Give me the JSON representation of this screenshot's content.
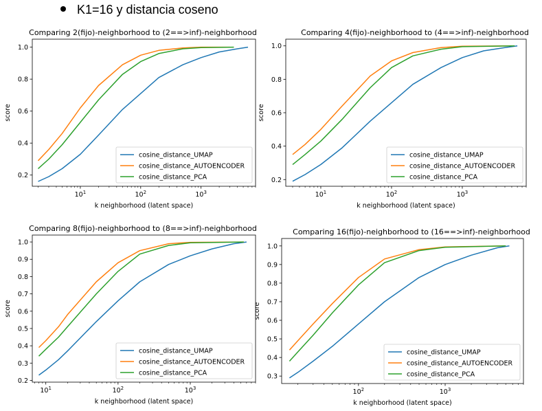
{
  "heading": "K1=16 y distancia coseno",
  "chart_data": [
    {
      "type": "line",
      "title": "Comparing 2(fijo)-neighborhood to (2==>inf)-neighborhood",
      "xlabel": "k neighborhood (latent space)",
      "ylabel": "score",
      "xscale": "log",
      "xlim": [
        1.6,
        8000
      ],
      "ylim": [
        0.13,
        1.05
      ],
      "xticks": [
        {
          "v": 10,
          "base": "10",
          "exp": "1"
        },
        {
          "v": 100,
          "base": "10",
          "exp": "2"
        },
        {
          "v": 1000,
          "base": "10",
          "exp": "3"
        }
      ],
      "yticks": [
        0.2,
        0.4,
        0.6,
        0.8,
        1.0
      ],
      "legend": "lower-right",
      "grid": false,
      "series": [
        {
          "name": "cosine_distance_UMAP",
          "color": "#1f77b4",
          "points": [
            [
              2,
              0.16
            ],
            [
              3,
              0.19
            ],
            [
              5,
              0.24
            ],
            [
              10,
              0.33
            ],
            [
              20,
              0.45
            ],
            [
              50,
              0.61
            ],
            [
              100,
              0.71
            ],
            [
              200,
              0.81
            ],
            [
              500,
              0.89
            ],
            [
              1000,
              0.935
            ],
            [
              2000,
              0.97
            ],
            [
              4000,
              0.99
            ],
            [
              6000,
              1.0
            ]
          ]
        },
        {
          "name": "cosine_distance_AUTOENCODER",
          "color": "#ff7f0e",
          "points": [
            [
              2,
              0.29
            ],
            [
              3,
              0.36
            ],
            [
              5,
              0.46
            ],
            [
              10,
              0.62
            ],
            [
              20,
              0.76
            ],
            [
              50,
              0.89
            ],
            [
              100,
              0.95
            ],
            [
              200,
              0.98
            ],
            [
              500,
              0.995
            ],
            [
              1000,
              1.0
            ],
            [
              3000,
              1.0
            ]
          ]
        },
        {
          "name": "cosine_distance_PCA",
          "color": "#2ca02c",
          "points": [
            [
              2,
              0.24
            ],
            [
              3,
              0.3
            ],
            [
              5,
              0.39
            ],
            [
              10,
              0.53
            ],
            [
              20,
              0.67
            ],
            [
              50,
              0.83
            ],
            [
              100,
              0.91
            ],
            [
              200,
              0.96
            ],
            [
              500,
              0.99
            ],
            [
              1000,
              0.997
            ],
            [
              3500,
              1.0
            ]
          ]
        }
      ]
    },
    {
      "type": "line",
      "title": "Comparing 4(fijo)-neighborhood to (4==>inf)-neighborhood",
      "xlabel": "k neighborhood (latent space)",
      "ylabel": "score",
      "xscale": "log",
      "xlim": [
        3.2,
        8000
      ],
      "ylim": [
        0.16,
        1.04
      ],
      "xticks": [
        {
          "v": 10,
          "base": "10",
          "exp": "1"
        },
        {
          "v": 100,
          "base": "10",
          "exp": "2"
        },
        {
          "v": 1000,
          "base": "10",
          "exp": "3"
        }
      ],
      "yticks": [
        0.2,
        0.4,
        0.6,
        0.8,
        1.0
      ],
      "legend": "lower-right",
      "grid": false,
      "series": [
        {
          "name": "cosine_distance_UMAP",
          "color": "#1f77b4",
          "points": [
            [
              4,
              0.19
            ],
            [
              6,
              0.23
            ],
            [
              10,
              0.29
            ],
            [
              20,
              0.39
            ],
            [
              50,
              0.55
            ],
            [
              100,
              0.66
            ],
            [
              200,
              0.77
            ],
            [
              500,
              0.87
            ],
            [
              1000,
              0.93
            ],
            [
              2000,
              0.97
            ],
            [
              4000,
              0.99
            ],
            [
              6000,
              1.0
            ]
          ]
        },
        {
          "name": "cosine_distance_AUTOENCODER",
          "color": "#ff7f0e",
          "points": [
            [
              4,
              0.35
            ],
            [
              6,
              0.41
            ],
            [
              10,
              0.5
            ],
            [
              20,
              0.64
            ],
            [
              50,
              0.82
            ],
            [
              100,
              0.91
            ],
            [
              200,
              0.96
            ],
            [
              500,
              0.99
            ],
            [
              1000,
              0.998
            ],
            [
              5000,
              1.0
            ]
          ]
        },
        {
          "name": "cosine_distance_PCA",
          "color": "#2ca02c",
          "points": [
            [
              4,
              0.29
            ],
            [
              6,
              0.35
            ],
            [
              10,
              0.43
            ],
            [
              20,
              0.56
            ],
            [
              50,
              0.75
            ],
            [
              100,
              0.87
            ],
            [
              200,
              0.94
            ],
            [
              500,
              0.98
            ],
            [
              1000,
              0.995
            ],
            [
              5500,
              1.0
            ]
          ]
        }
      ]
    },
    {
      "type": "line",
      "title": "Comparing 8(fijo)-neighborhood to (8==>inf)-neighborhood",
      "xlabel": "k neighborhood (latent space)",
      "ylabel": "score",
      "xscale": "log",
      "xlim": [
        6.5,
        8000
      ],
      "ylim": [
        0.19,
        1.04
      ],
      "xticks": [
        {
          "v": 10,
          "base": "10",
          "exp": "1"
        },
        {
          "v": 100,
          "base": "10",
          "exp": "2"
        },
        {
          "v": 1000,
          "base": "10",
          "exp": "3"
        }
      ],
      "yticks": [
        0.2,
        0.3,
        0.4,
        0.5,
        0.6,
        0.7,
        0.8,
        0.9,
        1.0
      ],
      "legend": "lower-right",
      "grid": false,
      "series": [
        {
          "name": "cosine_distance_UMAP",
          "color": "#1f77b4",
          "points": [
            [
              8,
              0.23
            ],
            [
              10,
              0.26
            ],
            [
              15,
              0.32
            ],
            [
              20,
              0.37
            ],
            [
              50,
              0.54
            ],
            [
              100,
              0.66
            ],
            [
              200,
              0.77
            ],
            [
              500,
              0.87
            ],
            [
              1000,
              0.92
            ],
            [
              2000,
              0.96
            ],
            [
              4000,
              0.99
            ],
            [
              6000,
              1.0
            ]
          ]
        },
        {
          "name": "cosine_distance_AUTOENCODER",
          "color": "#ff7f0e",
          "points": [
            [
              8,
              0.39
            ],
            [
              10,
              0.43
            ],
            [
              15,
              0.51
            ],
            [
              20,
              0.58
            ],
            [
              50,
              0.77
            ],
            [
              100,
              0.88
            ],
            [
              200,
              0.95
            ],
            [
              500,
              0.99
            ],
            [
              1000,
              0.998
            ],
            [
              5500,
              1.0
            ]
          ]
        },
        {
          "name": "cosine_distance_PCA",
          "color": "#2ca02c",
          "points": [
            [
              8,
              0.34
            ],
            [
              10,
              0.38
            ],
            [
              15,
              0.45
            ],
            [
              20,
              0.51
            ],
            [
              50,
              0.7
            ],
            [
              100,
              0.83
            ],
            [
              200,
              0.93
            ],
            [
              500,
              0.98
            ],
            [
              1000,
              0.995
            ],
            [
              5500,
              1.0
            ]
          ]
        }
      ]
    },
    {
      "type": "line",
      "title": "Comparing 16(fijo)-neighborhood to (16==>inf)-neighborhood",
      "xlabel": "k neighborhood (latent space)",
      "ylabel": "score",
      "xscale": "log",
      "xlim": [
        13,
        8000
      ],
      "ylim": [
        0.26,
        1.04
      ],
      "xticks": [
        {
          "v": 100,
          "base": "10",
          "exp": "2"
        },
        {
          "v": 1000,
          "base": "10",
          "exp": "3"
        }
      ],
      "yticks": [
        0.3,
        0.4,
        0.5,
        0.6,
        0.7,
        0.8,
        0.9,
        1.0
      ],
      "legend": "lower-right",
      "grid": false,
      "series": [
        {
          "name": "cosine_distance_UMAP",
          "color": "#1f77b4",
          "points": [
            [
              16,
              0.29
            ],
            [
              20,
              0.32
            ],
            [
              30,
              0.38
            ],
            [
              50,
              0.46
            ],
            [
              100,
              0.58
            ],
            [
              200,
              0.7
            ],
            [
              500,
              0.83
            ],
            [
              1000,
              0.9
            ],
            [
              2000,
              0.95
            ],
            [
              4000,
              0.99
            ],
            [
              5500,
              1.0
            ]
          ]
        },
        {
          "name": "cosine_distance_AUTOENCODER",
          "color": "#ff7f0e",
          "points": [
            [
              16,
              0.44
            ],
            [
              20,
              0.49
            ],
            [
              30,
              0.58
            ],
            [
              50,
              0.69
            ],
            [
              100,
              0.83
            ],
            [
              200,
              0.93
            ],
            [
              500,
              0.98
            ],
            [
              1000,
              0.995
            ],
            [
              5000,
              1.0
            ]
          ]
        },
        {
          "name": "cosine_distance_PCA",
          "color": "#2ca02c",
          "points": [
            [
              16,
              0.38
            ],
            [
              20,
              0.43
            ],
            [
              30,
              0.52
            ],
            [
              50,
              0.64
            ],
            [
              100,
              0.79
            ],
            [
              200,
              0.91
            ],
            [
              500,
              0.975
            ],
            [
              1000,
              0.993
            ],
            [
              5000,
              1.0
            ]
          ]
        }
      ]
    }
  ]
}
